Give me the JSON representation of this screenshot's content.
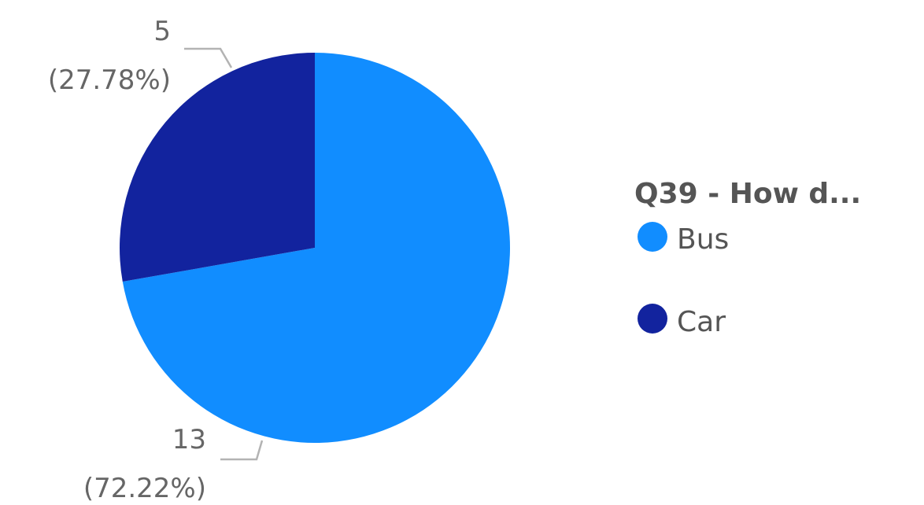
{
  "chart_data": {
    "type": "pie",
    "legend_title": "Q39 - How d...",
    "legend_position": "right",
    "start_angle_deg": 0,
    "direction": "clockwise",
    "slices": [
      {
        "label": "Bus",
        "value": 13,
        "percent": "72.22%",
        "display_value": "13",
        "display_percent": "(72.22%)",
        "color": "#118DFF"
      },
      {
        "label": "Car",
        "value": 5,
        "percent": "27.78%",
        "display_value": "5",
        "display_percent": "(27.78%)",
        "color": "#12239E"
      }
    ]
  },
  "colors": {
    "label_text": "#666666",
    "leader_line": "#b3b3b3",
    "legend_text": "#555555"
  }
}
